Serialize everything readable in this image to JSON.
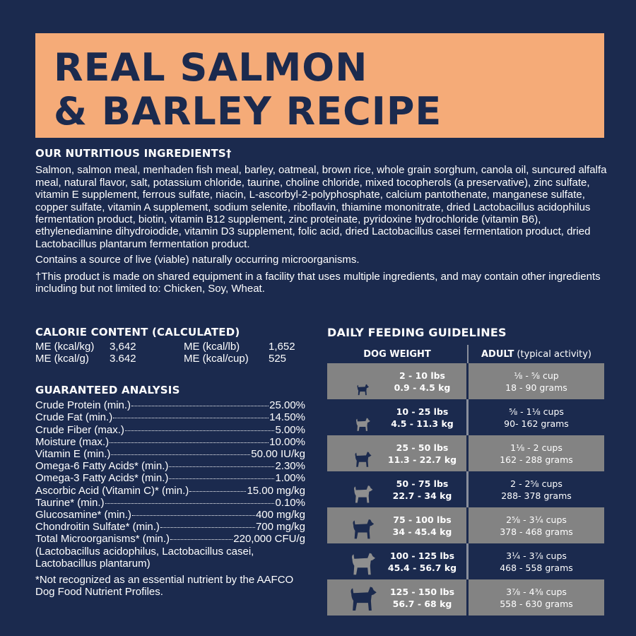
{
  "title": {
    "line1": "REAL SALMON",
    "line2": "& BARLEY RECIPE"
  },
  "ingredients": {
    "heading": "OUR NUTRITIOUS INGREDIENTS†",
    "text": "Salmon, salmon meal, menhaden fish meal, barley, oatmeal, brown rice, whole grain sorghum, canola oil, suncured alfalfa meal, natural flavor, salt, potassium chloride, taurine, choline chloride, mixed tocopherols (a preservative), zinc sulfate, vitamin E supplement, ferrous sulfate, niacin, L-ascorbyl-2-polyphosphate, calcium pantothenate, manganese sulfate, copper sulfate, vitamin A supplement, sodium selenite, riboflavin, thiamine mononitrate, dried Lactobacillus acidophilus fermentation product, biotin, vitamin B12 supplement, zinc proteinate, pyridoxine hydrochloride (vitamin B6), ethylenediamine dihydroiodide, vitamin D3 supplement, folic acid, dried Lactobacillus casei fermentation product, dried Lactobacillus plantarum fermentation product.",
    "probiotic": "Contains a source of live (viable) naturally occurring microorganisms.",
    "footnote": "†This product is made on shared equipment in a facility that uses multiple ingredients, and may contain other ingredients including but not limited to: Chicken, Soy, Wheat."
  },
  "calorie": {
    "heading": "CALORIE CONTENT (CALCULATED)",
    "items": [
      {
        "label": "ME (kcal/kg)",
        "value": "3,642"
      },
      {
        "label": "ME (kcal/lb)",
        "value": "1,652"
      },
      {
        "label": "ME (kcal/g)",
        "value": "3.642"
      },
      {
        "label": "ME (kcal/cup)",
        "value": "525"
      }
    ]
  },
  "analysis": {
    "heading": "GUARANTEED ANALYSIS",
    "rows": [
      {
        "label": "Crude Protein (min.)",
        "value": "25.00%"
      },
      {
        "label": "Crude Fat (min.)",
        "value": "14.50%"
      },
      {
        "label": "Crude Fiber (max.)",
        "value": "5.00%"
      },
      {
        "label": "Moisture (max.)",
        "value": "10.00%"
      },
      {
        "label": "Vitamin E (min.)",
        "value": "50.00 IU/kg"
      },
      {
        "label": "Omega-6 Fatty Acids* (min.)",
        "value": "2.30%"
      },
      {
        "label": "Omega-3 Fatty Acids* (min.)",
        "value": "1.00%"
      },
      {
        "label": "Ascorbic Acid (Vitamin C)* (min.)",
        "value": "15.00 mg/kg"
      },
      {
        "label": "Taurine* (min.)",
        "value": "0.10%"
      },
      {
        "label": "Glucosamine* (min.)",
        "value": "400 mg/kg"
      },
      {
        "label": "Chondroitin Sulfate* (min.)",
        "value": "700 mg/kg"
      },
      {
        "label": "Total Microorganisms* (min.)",
        "value": "220,000 CFU/g"
      }
    ],
    "organisms": "(Lactobacillus acidophilus, Lactobacillus casei, Lactobacillus plantarum)",
    "note": "*Not recognized as an essential nutrient by the AAFCO Dog Food Nutrient Profiles."
  },
  "feeding": {
    "heading": "DAILY FEEDING GUIDELINES",
    "col1": "DOG WEIGHT",
    "col2_bold": "ADULT",
    "col2_rest": "(typical activity)",
    "rows": [
      {
        "lbs": "2 - 10 lbs",
        "kg": "0.9 - 4.5 kg",
        "cups": "⅛ - ⅝ cup",
        "grams": "18 - 90 grams",
        "icon": "chihuahua-icon"
      },
      {
        "lbs": "10 - 25 lbs",
        "kg": "4.5 - 11.3 kg",
        "cups": "⅝ - 1⅛ cups",
        "grams": "90- 162 grams",
        "icon": "bulldog-icon"
      },
      {
        "lbs": "25 - 50 lbs",
        "kg": "11.3 - 22.7 kg",
        "cups": "1⅛ - 2 cups",
        "grams": "162 - 288 grams",
        "icon": "husky-icon"
      },
      {
        "lbs": "50 - 75 lbs",
        "kg": "22.7 - 34 kg",
        "cups": "2 - 2⅝ cups",
        "grams": "288- 378 grams",
        "icon": "shepherd-icon"
      },
      {
        "lbs": "75 - 100 lbs",
        "kg": "34 - 45.4 kg",
        "cups": "2⅝ - 3¼ cups",
        "grams": "378 - 468 grams",
        "icon": "great-dane-icon"
      },
      {
        "lbs": "100 - 125 lbs",
        "kg": "45.4 - 56.7 kg",
        "cups": "3¼ - 3⅞ cups",
        "grams": "468 - 558 grams",
        "icon": "labrador-icon"
      },
      {
        "lbs": "125 - 150 lbs",
        "kg": "56.7 - 68 kg",
        "cups": "3⅞ - 4⅜ cups",
        "grams": "558 - 630 grams",
        "icon": "newfoundland-icon"
      }
    ]
  },
  "colors": {
    "background": "#1b2a4e",
    "title_band": "#f5ab78",
    "row_gray": "#838383"
  }
}
